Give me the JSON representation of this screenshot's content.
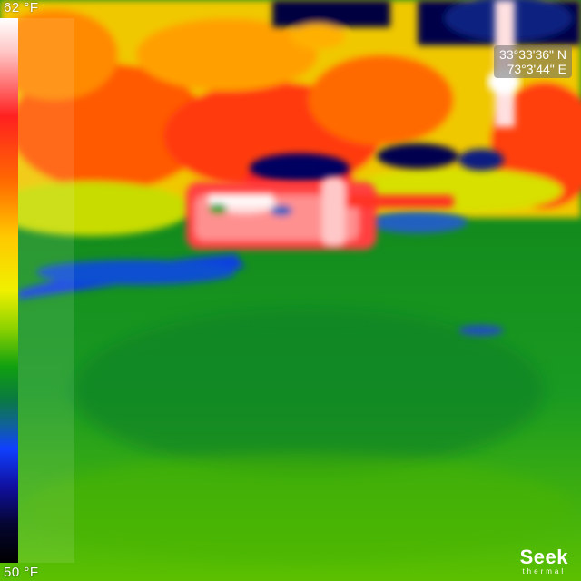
{
  "scale": {
    "max_label": "62 °F",
    "min_label": "50 °F"
  },
  "gps": {
    "latitude": "33°33'36\" N",
    "longitude": "73°3'44\" E"
  },
  "logo": {
    "main": "Seek",
    "sub": "thermal"
  },
  "colors": {
    "hot": "#ffffff",
    "warm": "#ff2020",
    "mid": "#f0f000",
    "cool": "#10a010",
    "cold": "#000010"
  }
}
